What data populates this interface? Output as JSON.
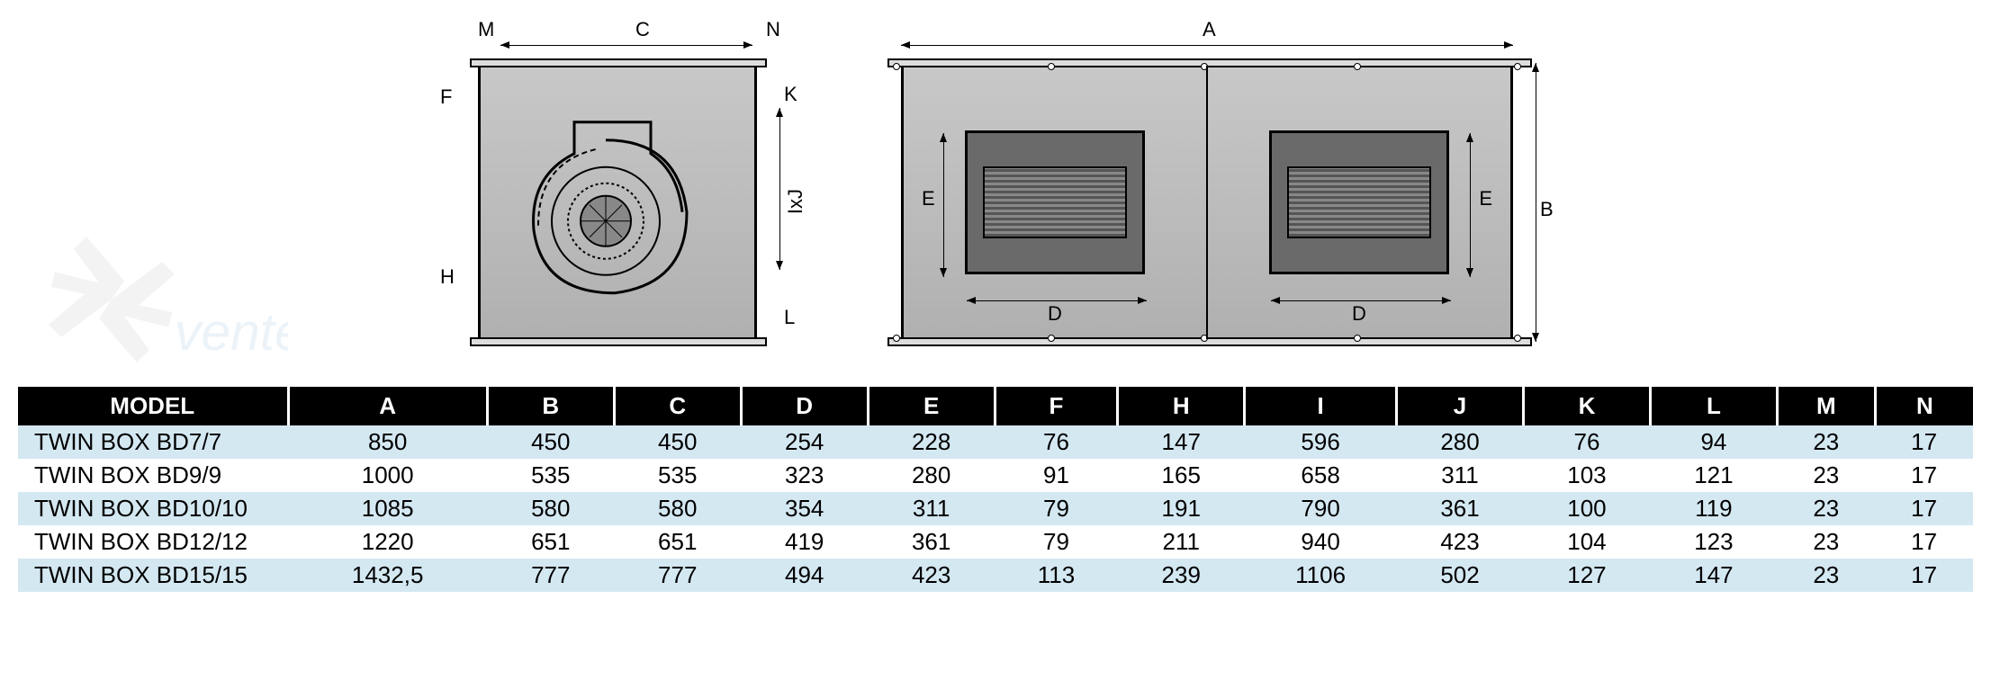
{
  "diagrams": {
    "side_view": {
      "labels": {
        "M": "M",
        "C": "C",
        "N": "N",
        "F": "F",
        "H": "H",
        "K": "K",
        "IxJ": "IxJ",
        "L": "L"
      }
    },
    "front_view": {
      "labels": {
        "A": "A",
        "B": "B",
        "D": "D",
        "E": "E"
      }
    },
    "colors": {
      "box_border": "#000000",
      "box_fill_top": "#c8c8c8",
      "box_fill_bottom": "#b0b0b0",
      "opening_fill": "#6a6a6a",
      "dim_line": "#000000"
    }
  },
  "table": {
    "columns": [
      "MODEL",
      "A",
      "B",
      "C",
      "D",
      "E",
      "F",
      "H",
      "I",
      "J",
      "K",
      "L",
      "M",
      "N"
    ],
    "header_bg": "#000000",
    "header_fg": "#ffffff",
    "row_alt_bg": "#d4e8f2",
    "row_bg": "#ffffff",
    "rows": [
      {
        "model": "TWIN BOX BD7/7",
        "A": "850",
        "B": "450",
        "C": "450",
        "D": "254",
        "E": "228",
        "F": "76",
        "H": "147",
        "I": "596",
        "J": "280",
        "K": "76",
        "L": "94",
        "M": "23",
        "N": "17"
      },
      {
        "model": "TWIN BOX BD9/9",
        "A": "1000",
        "B": "535",
        "C": "535",
        "D": "323",
        "E": "280",
        "F": "91",
        "H": "165",
        "I": "658",
        "J": "311",
        "K": "103",
        "L": "121",
        "M": "23",
        "N": "17"
      },
      {
        "model": "TWIN BOX BD10/10",
        "A": "1085",
        "B": "580",
        "C": "580",
        "D": "354",
        "E": "311",
        "F": "79",
        "H": "191",
        "I": "790",
        "J": "361",
        "K": "100",
        "L": "119",
        "M": "23",
        "N": "17"
      },
      {
        "model": "TWIN BOX BD12/12",
        "A": "1220",
        "B": "651",
        "C": "651",
        "D": "419",
        "E": "361",
        "F": "79",
        "H": "211",
        "I": "940",
        "J": "423",
        "K": "104",
        "L": "123",
        "M": "23",
        "N": "17"
      },
      {
        "model": "TWIN BOX BD15/15",
        "A": "1432,5",
        "B": "777",
        "C": "777",
        "D": "494",
        "E": "423",
        "F": "113",
        "H": "239",
        "I": "1106",
        "J": "502",
        "K": "127",
        "L": "147",
        "M": "23",
        "N": "17"
      }
    ]
  },
  "watermark": {
    "text": "ventel",
    "blade_color": "#808080",
    "text_color": "#4a90c2"
  }
}
